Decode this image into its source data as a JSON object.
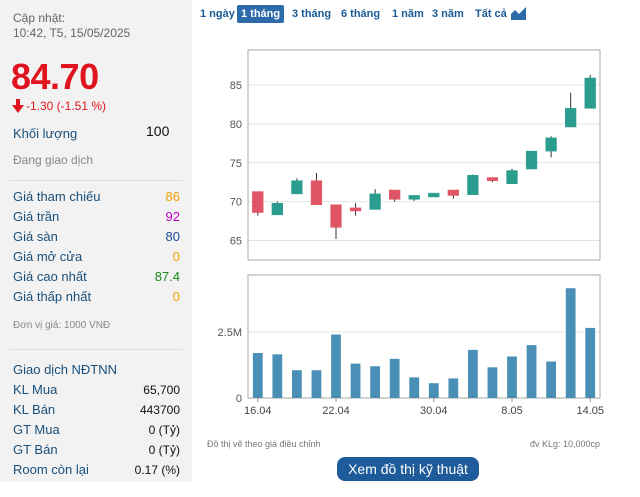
{
  "left_panel": {
    "updated_label": "Cập nhật:",
    "timestamp": "10:42, T5, 15/05/2025",
    "price": "84.70",
    "change": "-1.30 (-1.51 %)",
    "volume_label": "Khối lượng",
    "volume_value": "100",
    "status": "Đang giao dịch",
    "rows": [
      {
        "label": "Giá tham chiếu",
        "value": "86",
        "color": "#f0a000"
      },
      {
        "label": "Giá trần",
        "value": "92",
        "color": "#c000c0"
      },
      {
        "label": "Giá sàn",
        "value": "80",
        "color": "#1a4f9a"
      },
      {
        "label": "Giá mở cửa",
        "value": "0",
        "color": "#f0a000"
      },
      {
        "label": "Giá cao nhất",
        "value": "87.4",
        "color": "#1a8a1a"
      },
      {
        "label": "Giá thấp nhất",
        "value": "0",
        "color": "#f0a000"
      }
    ],
    "unit_note": "Đơn vị giá: 1000 VNĐ",
    "foreign_title": "Giao dịch NĐTNN",
    "foreign_rows": [
      {
        "label": "KL Mua",
        "value": "65,700"
      },
      {
        "label": "KL Bán",
        "value": "443700"
      },
      {
        "label": "GT Mua",
        "value": "0 (Tỷ)"
      },
      {
        "label": "GT Bán",
        "value": "0 (Tỷ)"
      },
      {
        "label": "Room còn lại",
        "value": "0.17 (%)"
      }
    ]
  },
  "tabs": {
    "items": [
      "1 ngày",
      "1 tháng",
      "3 tháng",
      "6 tháng",
      "1 năm",
      "3 năm",
      "Tất cả"
    ],
    "active": "1 tháng",
    "chart_icon": "area-chart-icon"
  },
  "chart_data": {
    "type": "candlestick",
    "x_ticks": [
      "16.04",
      "22.04",
      "30.04",
      "8.05",
      "14.05"
    ],
    "price_ticks": [
      65,
      70,
      75,
      80,
      85
    ],
    "price_range": [
      62.5,
      89.5
    ],
    "volume_ticks": [
      "0",
      "2.5M"
    ],
    "volume_range": [
      0,
      4650000
    ],
    "up_color": "#2a9d8f",
    "down_color": "#e05565",
    "volume_color": "#4a8fb5",
    "candles": [
      {
        "o": 71.3,
        "h": 71.3,
        "l": 68.2,
        "c": 68.6
      },
      {
        "o": 68.3,
        "h": 70.0,
        "l": 68.3,
        "c": 69.8
      },
      {
        "o": 71.0,
        "h": 73.0,
        "l": 71.0,
        "c": 72.7
      },
      {
        "o": 72.7,
        "h": 73.7,
        "l": 69.6,
        "c": 69.6
      },
      {
        "o": 69.6,
        "h": 69.6,
        "l": 65.2,
        "c": 66.7
      },
      {
        "o": 69.2,
        "h": 69.8,
        "l": 68.2,
        "c": 68.8
      },
      {
        "o": 69.0,
        "h": 71.6,
        "l": 69.0,
        "c": 71.0
      },
      {
        "o": 71.5,
        "h": 71.5,
        "l": 70.0,
        "c": 70.3
      },
      {
        "o": 70.3,
        "h": 70.8,
        "l": 70.1,
        "c": 70.8
      },
      {
        "o": 70.6,
        "h": 71.1,
        "l": 70.6,
        "c": 71.1
      },
      {
        "o": 71.5,
        "h": 71.5,
        "l": 70.4,
        "c": 70.8
      },
      {
        "o": 70.9,
        "h": 73.5,
        "l": 70.9,
        "c": 73.4
      },
      {
        "o": 73.1,
        "h": 73.1,
        "l": 72.5,
        "c": 72.7
      },
      {
        "o": 72.3,
        "h": 74.2,
        "l": 72.3,
        "c": 74.0
      },
      {
        "o": 74.2,
        "h": 76.5,
        "l": 74.2,
        "c": 76.5
      },
      {
        "o": 76.5,
        "h": 78.4,
        "l": 75.7,
        "c": 78.2
      },
      {
        "o": 79.6,
        "h": 84.0,
        "l": 79.6,
        "c": 82.0
      },
      {
        "o": 82.0,
        "h": 86.3,
        "l": 82.0,
        "c": 85.9
      }
    ],
    "volumes": [
      1700000,
      1650000,
      1050000,
      1050000,
      2400000,
      1300000,
      1200000,
      1480000,
      780000,
      560000,
      740000,
      1820000,
      1160000,
      1570000,
      2000000,
      1380000,
      4150000,
      2650000
    ],
    "footnote_left": "Đồ thị vẽ theo giá điều chỉnh",
    "footnote_right": "đv KLg: 10,000cp"
  },
  "button_label": "Xem đồ thị kỹ thuật"
}
